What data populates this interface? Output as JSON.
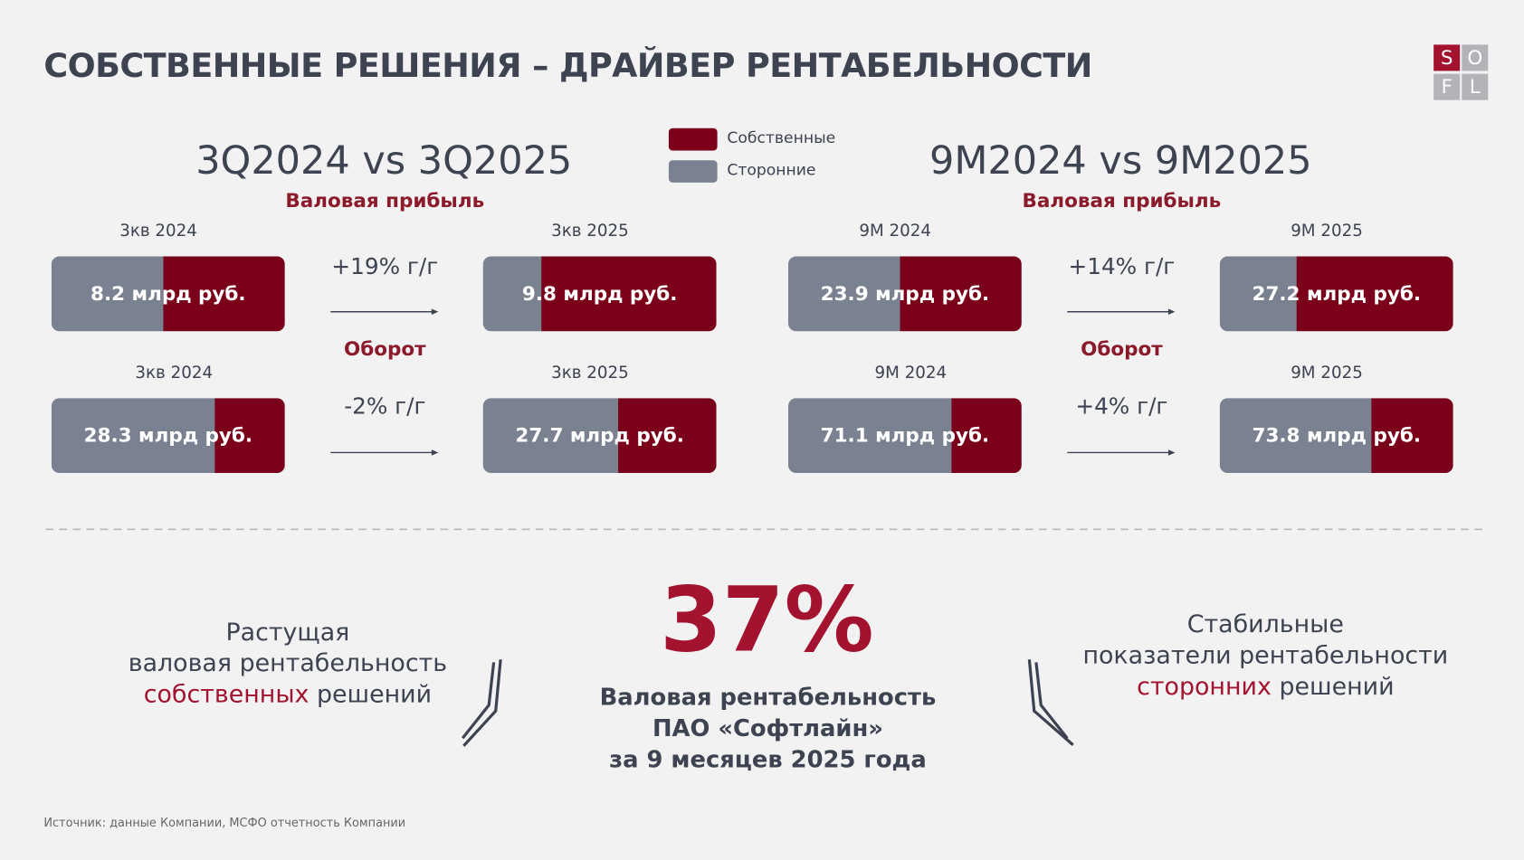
{
  "header": {
    "title": "СОБСТВЕННЫЕ РЕШЕНИЯ – ДРАЙВЕР РЕНТАБЕЛЬНОСТИ",
    "logo": [
      "S",
      "O",
      "F",
      "L"
    ]
  },
  "legend": [
    {
      "label": "Собственные",
      "color": "#7b0019"
    },
    {
      "label": "Сторонние",
      "color": "#7a8190"
    }
  ],
  "panels": [
    {
      "title": "3Q2024 vs 3Q2025",
      "metrics": [
        {
          "name": "Валовая прибыль",
          "growth": "+19% г/г",
          "from": {
            "period": "3кв 2024",
            "value": "8.2 млрд руб.",
            "own_share": 52
          },
          "to": {
            "period": "3кв 2025",
            "value": "9.8 млрд руб.",
            "own_share": 75
          }
        },
        {
          "name": "Оборот",
          "growth": "-2% г/г",
          "from": {
            "period": "3кв 2024",
            "value": "28.3 млрд руб.",
            "own_share": 30
          },
          "to": {
            "period": "3кв 2025",
            "value": "27.7 млрд руб.",
            "own_share": 42
          }
        }
      ]
    },
    {
      "title": "9M2024 vs 9M2025",
      "metrics": [
        {
          "name": "Валовая прибыль",
          "growth": "+14% г/г",
          "from": {
            "period": "9М 2024",
            "value": "23.9 млрд руб.",
            "own_share": 52
          },
          "to": {
            "period": "9М 2025",
            "value": "27.2 млрд руб.",
            "own_share": 67
          }
        },
        {
          "name": "Оборот",
          "growth": "+4% г/г",
          "from": {
            "period": "9М 2024",
            "value": "71.1 млрд руб.",
            "own_share": 30
          },
          "to": {
            "period": "9М 2025",
            "value": "73.8 млрд руб.",
            "own_share": 35
          }
        }
      ]
    }
  ],
  "bottom": {
    "left": {
      "lines": [
        "Растущая",
        "валовая рентабельность"
      ],
      "accent": "собственных",
      "tail": "решений"
    },
    "highlight": "37%",
    "caption": [
      "Валовая рентабельность",
      "ПАО «Софтлайн»",
      "за 9 месяцев 2025 года"
    ],
    "right": {
      "lines": [
        "Стабильные",
        "показатели рентабельности"
      ],
      "accent": "сторонних",
      "tail": "решений"
    }
  },
  "source": "Источник: данные Компании, МСФО отчетность Компании"
}
